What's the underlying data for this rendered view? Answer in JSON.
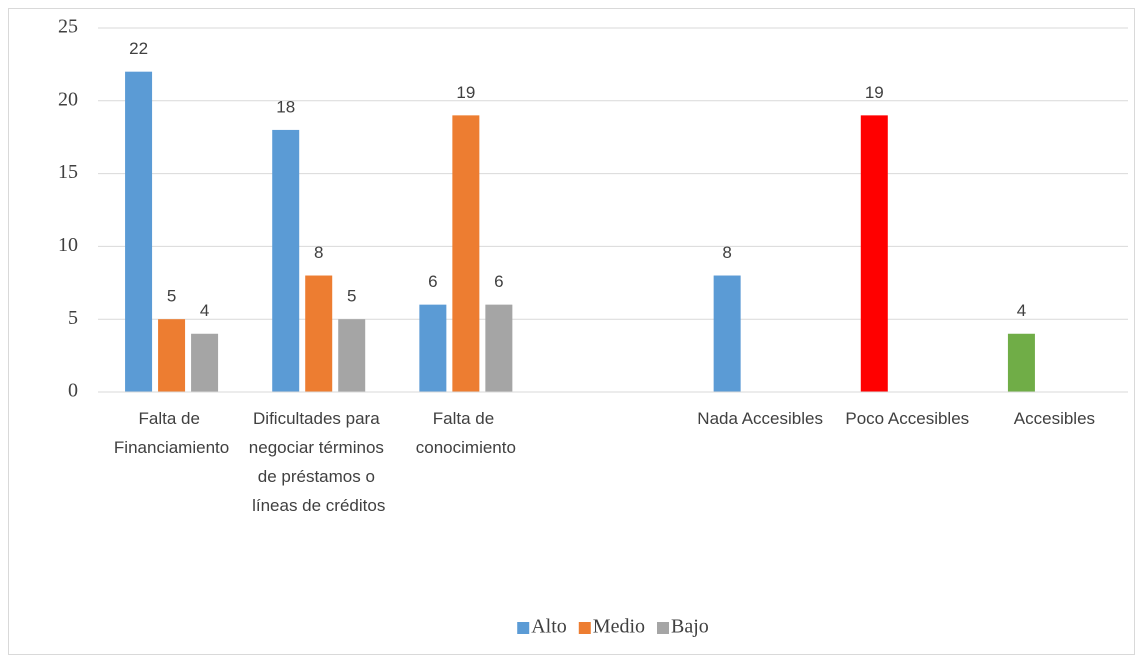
{
  "chart_data": {
    "type": "bar",
    "categories": [
      "Falta de Financiamiento",
      "Dificultades para negociar términos de préstamos o líneas de créditos",
      "Falta de conocimiento",
      null,
      "Nada Accesibles",
      "Poco Accesibles",
      "Accesibles"
    ],
    "series": [
      {
        "name": "Alto",
        "color": "#5b9bd5",
        "colors": [
          "#5b9bd5",
          "#5b9bd5",
          "#5b9bd5",
          null,
          "#5b9bd5",
          "#ff0000",
          "#70ad47"
        ],
        "values": [
          22,
          18,
          6,
          null,
          8,
          19,
          4
        ]
      },
      {
        "name": "Medio",
        "color": "#ed7d31",
        "values": [
          5,
          8,
          19,
          null,
          null,
          null,
          null
        ]
      },
      {
        "name": "Bajo",
        "color": "#a5a5a5",
        "values": [
          4,
          5,
          6,
          null,
          null,
          null,
          null
        ]
      }
    ],
    "ylim": [
      0,
      25
    ],
    "yticks": [
      0,
      5,
      10,
      15,
      20,
      25
    ],
    "grid": true,
    "legend": "bottom"
  }
}
